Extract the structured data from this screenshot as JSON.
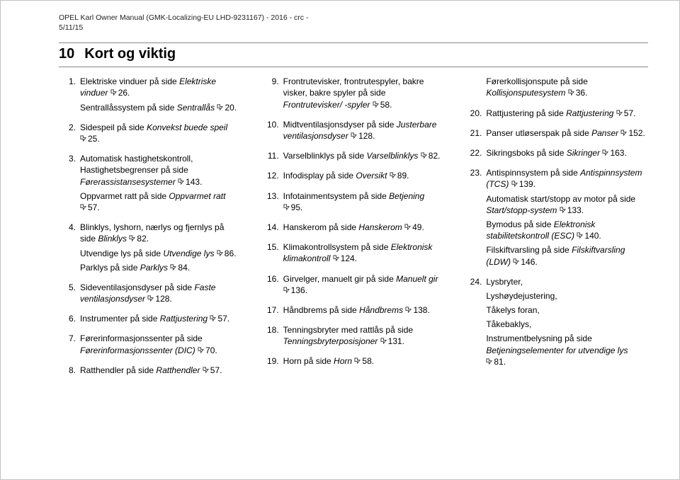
{
  "header": {
    "line1": "OPEL Karl Owner Manual (GMK-Localizing-EU LHD-9231167) - 2016 - crc -",
    "line2": "5/11/15"
  },
  "chapter": {
    "number": "10",
    "title": "Kort og viktig"
  },
  "icon_color": "#444444",
  "columns": [
    [
      {
        "num": "1.",
        "parts": [
          {
            "text": "Elektriske vinduer på side ",
            "ref": {
              "italic": "Elektriske vinduer",
              "page": "26"
            }
          },
          {
            "text": "Sentrallåssystem på side ",
            "ref": {
              "italic": "Sentrallås",
              "page": "20"
            }
          }
        ]
      },
      {
        "num": "2.",
        "parts": [
          {
            "text": "Sidespeil på side ",
            "ref": {
              "italic": "Konvekst buede speil",
              "page": "25"
            }
          }
        ]
      },
      {
        "num": "3.",
        "parts": [
          {
            "text": "Automatisk hastighetskontroll, Hastighetsbegrenser på side ",
            "ref": {
              "italic": "Førerassistansesystemer",
              "page": "143"
            }
          },
          {
            "text": "Oppvarmet ratt på side ",
            "ref": {
              "italic": "Oppvarmet ratt",
              "page": "57"
            }
          }
        ]
      },
      {
        "num": "4.",
        "parts": [
          {
            "text": "Blinklys, lyshorn, nærlys og fjernlys på side ",
            "ref": {
              "italic": "Blinklys",
              "page": "82"
            }
          },
          {
            "text": "Utvendige lys på side ",
            "ref": {
              "italic": "Utvendige lys",
              "page": "86"
            }
          },
          {
            "text": "Parklys på side ",
            "ref": {
              "italic": "Parklys",
              "page": "84"
            }
          }
        ]
      },
      {
        "num": "5.",
        "parts": [
          {
            "text": "Sideventilasjonsdyser på side ",
            "ref": {
              "italic": "Faste ventilasjonsdyser",
              "page": "128"
            }
          }
        ]
      },
      {
        "num": "6.",
        "parts": [
          {
            "text": "Instrumenter på side ",
            "ref": {
              "italic": "Rattjustering",
              "page": "57"
            }
          }
        ]
      },
      {
        "num": "7.",
        "parts": [
          {
            "text": "Førerinformasjonssenter på side ",
            "ref": {
              "italic": "Førerinformasjonssenter (DIC)",
              "page": "70"
            }
          }
        ]
      },
      {
        "num": "8.",
        "parts": [
          {
            "text": "Ratthendler på side ",
            "ref": {
              "italic": "Ratthendler",
              "page": "57"
            }
          }
        ]
      }
    ],
    [
      {
        "num": "9.",
        "parts": [
          {
            "text": "Frontrutevisker, frontrutespyler, bakre visker, bakre spyler på side ",
            "ref": {
              "italic": "Frontrutevisker/ -spyler",
              "page": "58"
            }
          }
        ]
      },
      {
        "num": "10.",
        "parts": [
          {
            "text": "Midtventilasjonsdyser på side ",
            "ref": {
              "italic": "Justerbare ventilasjonsdyser",
              "page": "128"
            }
          }
        ]
      },
      {
        "num": "11.",
        "parts": [
          {
            "text": "Varselblinklys på side ",
            "ref": {
              "italic": "Varselblinklys",
              "page": "82"
            }
          }
        ]
      },
      {
        "num": "12.",
        "parts": [
          {
            "text": "Infodisplay på side ",
            "ref": {
              "italic": "Oversikt",
              "page": "89"
            }
          }
        ]
      },
      {
        "num": "13.",
        "parts": [
          {
            "text": "Infotainmentsystem på side ",
            "ref": {
              "italic": "Betjening",
              "page": "95"
            }
          }
        ]
      },
      {
        "num": "14.",
        "parts": [
          {
            "text": "Hanskerom på side ",
            "ref": {
              "italic": "Hanskerom",
              "page": "49"
            }
          }
        ]
      },
      {
        "num": "15.",
        "parts": [
          {
            "text": "Klimakontrollsystem på side ",
            "ref": {
              "italic": "Elektronisk klimakontroll",
              "page": "124"
            }
          }
        ]
      },
      {
        "num": "16.",
        "parts": [
          {
            "text": "Girvelger, manuelt gir på side ",
            "ref": {
              "italic": "Manuelt gir",
              "page": "136"
            }
          }
        ]
      },
      {
        "num": "17.",
        "parts": [
          {
            "text": "Håndbrems på side ",
            "ref": {
              "italic": "Håndbrems",
              "page": "138"
            }
          }
        ]
      },
      {
        "num": "18.",
        "parts": [
          {
            "text": "Tenningsbryter med rattlås på side ",
            "ref": {
              "italic": "Tenningsbryterposisjoner",
              "page": "131"
            }
          }
        ]
      },
      {
        "num": "19.",
        "parts": [
          {
            "text": "Horn på side ",
            "ref": {
              "italic": "Horn",
              "page": "58"
            }
          }
        ]
      }
    ],
    [
      {
        "num": "",
        "parts": [
          {
            "text": "Førerkollisjonspute på side ",
            "ref": {
              "italic": "Kollisjonsputesystem",
              "page": "36"
            }
          }
        ]
      },
      {
        "num": "20.",
        "parts": [
          {
            "text": "Rattjustering på side ",
            "ref": {
              "italic": "Rattjustering",
              "page": "57"
            }
          }
        ]
      },
      {
        "num": "21.",
        "parts": [
          {
            "text": "Panser utløserspak på side ",
            "ref": {
              "italic": "Panser",
              "page": "152"
            }
          }
        ]
      },
      {
        "num": "22.",
        "parts": [
          {
            "text": "Sikringsboks på side ",
            "ref": {
              "italic": "Sikringer",
              "page": "163"
            }
          }
        ]
      },
      {
        "num": "23.",
        "parts": [
          {
            "text": "Antispinnsystem på side ",
            "ref": {
              "italic": "Antispinnsystem (TCS)",
              "page": "139"
            }
          },
          {
            "text": "Automatisk start/stopp av motor på side ",
            "ref": {
              "italic": "Start/stopp-system",
              "page": "133"
            }
          },
          {
            "text": "Bymodus på side ",
            "ref": {
              "italic": "Elektronisk stabilitetskontroll (ESC)",
              "page": "140"
            }
          },
          {
            "text": "Filskiftvarsling på side ",
            "ref": {
              "italic": "Filskiftvarsling (LDW)",
              "page": "146"
            }
          }
        ]
      },
      {
        "num": "24.",
        "parts": [
          {
            "plain": "Lysbryter,"
          },
          {
            "plain": "Lyshøydejustering,"
          },
          {
            "plain": "Tåkelys foran,"
          },
          {
            "plain": "Tåkebaklys,"
          },
          {
            "text": "Instrumentbelysning på side ",
            "ref": {
              "italic": "Betjeningselementer for utvendige lys",
              "page": "81"
            }
          }
        ]
      }
    ]
  ]
}
